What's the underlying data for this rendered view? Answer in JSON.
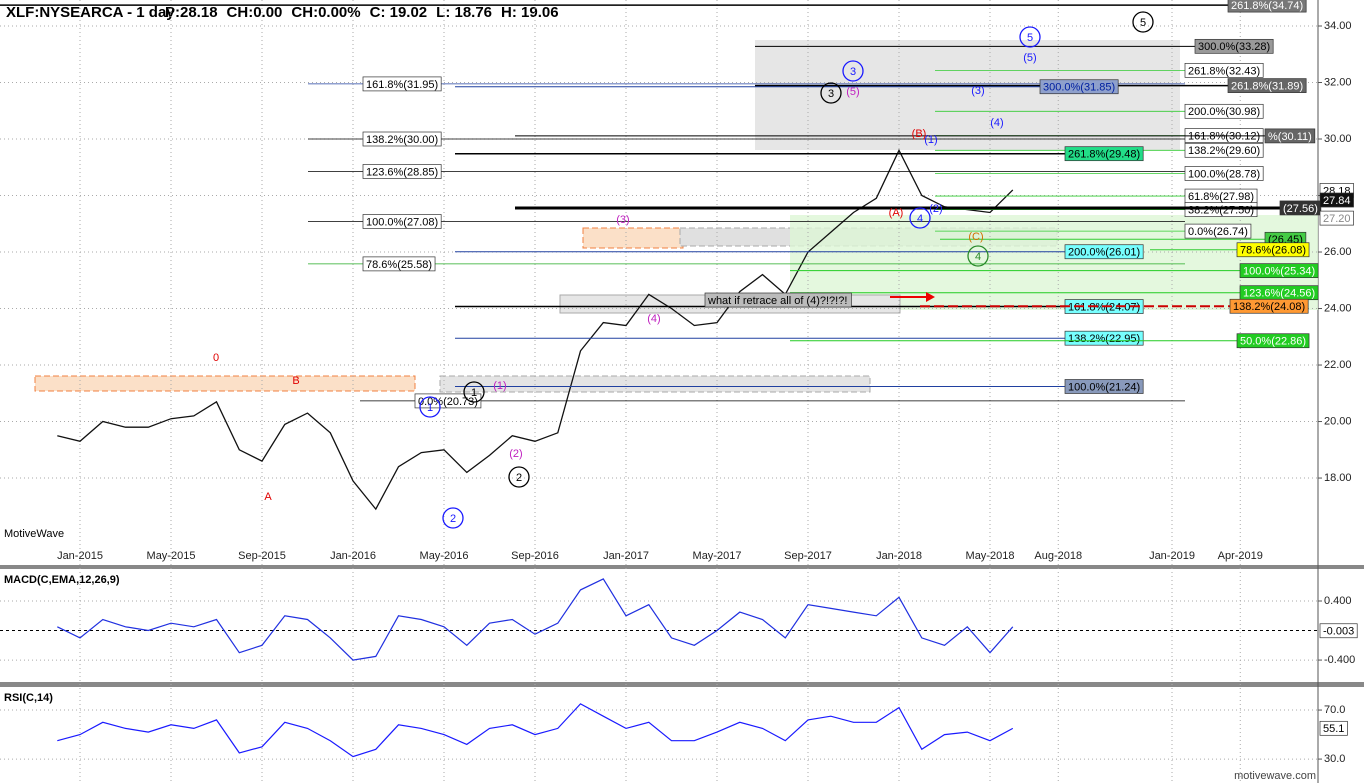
{
  "header": {
    "symbol": "XLF:NYSEARCA - 1 day",
    "fields": [
      "P:28.18",
      "CH:0.00",
      "CH:0.00%",
      "C: 19.02",
      "L: 18.76",
      "H: 19.06"
    ]
  },
  "watermark": "MotiveWave",
  "footer": "motivewave.com",
  "chart_data": [
    {
      "type": "line",
      "color": "#111111",
      "grid": true,
      "categories": [
        null,
        "Jan-2015",
        null,
        null,
        null,
        "May-2015",
        null,
        null,
        null,
        "Sep-2015",
        null,
        null,
        null,
        "Jan-2016",
        null,
        null,
        null,
        "May-2016",
        null,
        null,
        null,
        "Sep-2016",
        null,
        null,
        null,
        "Jan-2017",
        null,
        null,
        null,
        "May-2017",
        null,
        null,
        null,
        "Sep-2017",
        null,
        null,
        null,
        "Jan-2018",
        null,
        null,
        null,
        "May-2018",
        null,
        null,
        "Aug-2018",
        null,
        null,
        null,
        null,
        "Jan-2019",
        null,
        null,
        "Apr-2019"
      ],
      "values": [
        19.5,
        19.3,
        20.0,
        19.8,
        19.8,
        20.1,
        20.2,
        20.7,
        19.0,
        18.6,
        19.9,
        20.3,
        19.6,
        17.9,
        16.9,
        18.4,
        18.9,
        19.0,
        18.2,
        18.8,
        19.5,
        19.3,
        19.6,
        22.5,
        23.5,
        23.4,
        24.5,
        24.0,
        23.4,
        23.5,
        24.6,
        25.2,
        24.5,
        26.0,
        26.7,
        27.4,
        27.9,
        29.6,
        28.0,
        27.6,
        27.5,
        27.4,
        28.2,
        null,
        null,
        null,
        null,
        null,
        null,
        null,
        null,
        null,
        null
      ],
      "ylim": [
        15.63,
        34.92
      ],
      "yticks": [
        {
          "value": 18,
          "label": "18.00"
        },
        {
          "value": 20,
          "label": "20.00"
        },
        {
          "value": 22,
          "label": "22.00"
        },
        {
          "value": 24,
          "label": "24.00"
        },
        {
          "value": 26,
          "label": "26.00"
        },
        {
          "value": 28,
          "label": "28.00"
        },
        {
          "value": 30,
          "label": "30.00"
        },
        {
          "value": 32,
          "label": "32.00"
        },
        {
          "value": 34,
          "label": "34.00"
        }
      ],
      "price_labels": [
        {
          "value": 28.18,
          "label": "28.18"
        },
        {
          "value": 27.84,
          "label": "27.84"
        },
        {
          "value": 27.2,
          "label": "27.20"
        }
      ],
      "levels_left": [
        {
          "value": 31.95,
          "label": "161.8%(31.95)"
        },
        {
          "value": 30.0,
          "label": "138.2%(30.00)"
        },
        {
          "value": 28.85,
          "label": "123.6%(28.85)"
        },
        {
          "value": 27.08,
          "label": "100.0%(27.08)"
        },
        {
          "value": 25.58,
          "label": "78.6%(25.58)"
        },
        {
          "value": 20.73,
          "label": "0.0%(20.73)"
        }
      ],
      "levels_right": [
        {
          "value": 32.43,
          "label": "261.8%(32.43)"
        },
        {
          "value": 30.98,
          "label": "200.0%(30.98)"
        },
        {
          "value": 30.12,
          "label": "161.8%(30.12)"
        },
        {
          "value": 29.6,
          "label": "138.2%(29.60)"
        },
        {
          "value": 28.78,
          "label": "100.0%(28.78)"
        },
        {
          "value": 27.98,
          "label": "61.8%(27.98)"
        },
        {
          "value": 27.5,
          "label": "38.2%(27.50)"
        },
        {
          "value": 26.74,
          "label": "0.0%(26.74)"
        }
      ],
      "levels_boxed": [
        {
          "value": 34.74,
          "label": "261.8%(34.74)"
        },
        {
          "value": 33.28,
          "label": "300.0%(33.28)"
        },
        {
          "value": 31.89,
          "label": "261.8%(31.89)"
        },
        {
          "value": 31.85,
          "label": "300.0%(31.85)"
        },
        {
          "value": 29.48,
          "label": "261.8%(29.48)"
        },
        {
          "value": 30.11,
          "label": "%(30.11)"
        },
        {
          "value": 27.56,
          "label": "(27.56)"
        },
        {
          "value": 26.45,
          "label": "(26.45)"
        },
        {
          "value": 26.01,
          "label": "200.0%(26.01)"
        },
        {
          "value": 26.08,
          "label": "78.6%(26.08)"
        },
        {
          "value": 25.34,
          "label": "100.0%(25.34)"
        },
        {
          "value": 24.56,
          "label": "123.6%(24.56)"
        },
        {
          "value": 24.07,
          "label": "161.8%(24.07)"
        },
        {
          "value": 24.08,
          "label": "138.2%(24.08)"
        },
        {
          "value": 22.95,
          "label": "138.2%(22.95)"
        },
        {
          "value": 22.86,
          "label": "50.0%(22.86)"
        },
        {
          "value": 21.24,
          "label": "100.0%(21.24)"
        }
      ],
      "wave_labels": [
        {
          "text": "0",
          "color": "#e00000"
        },
        {
          "text": "B",
          "color": "#e00000"
        },
        {
          "text": "A",
          "color": "#e00000"
        },
        {
          "text": "1",
          "color": "#1a1aff",
          "circled": true
        },
        {
          "text": "2",
          "color": "#1a1aff",
          "circled": true
        },
        {
          "text": "(1)",
          "color": "#c020c0"
        },
        {
          "text": "(2)",
          "color": "#c020c0"
        },
        {
          "text": "1",
          "color": "#000000",
          "circled": true
        },
        {
          "text": "2",
          "color": "#000000",
          "circled": true
        },
        {
          "text": "(3)",
          "color": "#c020c0"
        },
        {
          "text": "(4)",
          "color": "#c020c0"
        },
        {
          "text": "3",
          "color": "#000000",
          "circled": true
        },
        {
          "text": "3",
          "color": "#1a1aff",
          "circled": true
        },
        {
          "text": "(5)",
          "color": "#c020c0"
        },
        {
          "text": "5",
          "color": "#1a1aff",
          "circled": true
        },
        {
          "text": "5",
          "color": "#000000",
          "circled": true
        },
        {
          "text": "(5)",
          "color": "#1a1aff"
        },
        {
          "text": "(3)",
          "color": "#1a1aff"
        },
        {
          "text": "(4)",
          "color": "#1a1aff"
        },
        {
          "text": "(B)",
          "color": "#e00000"
        },
        {
          "text": "(1)",
          "color": "#1a1aff"
        },
        {
          "text": "(A)",
          "color": "#e00000"
        },
        {
          "text": "(2)",
          "color": "#1a1aff"
        },
        {
          "text": "4",
          "color": "#1a1aff",
          "circled": true
        },
        {
          "text": "(C)",
          "color": "#d07000"
        },
        {
          "text": "4",
          "color": "#2a8a2a",
          "circled": true
        }
      ],
      "annotation": "what if retrace all of (4)?!?!?!"
    },
    {
      "type": "line",
      "title": "MACD(C,EMA,12,26,9)",
      "color": "#2030e0",
      "zero_line": true,
      "values": [
        0.05,
        -0.1,
        0.15,
        0.05,
        0.0,
        0.1,
        0.05,
        0.15,
        -0.3,
        -0.2,
        0.2,
        0.15,
        -0.1,
        -0.4,
        -0.35,
        0.2,
        0.15,
        0.05,
        -0.2,
        0.1,
        0.15,
        -0.05,
        0.1,
        0.55,
        0.7,
        0.2,
        0.35,
        -0.1,
        -0.2,
        0.0,
        0.25,
        0.15,
        -0.1,
        0.35,
        0.3,
        0.25,
        0.2,
        0.45,
        -0.1,
        -0.2,
        0.05,
        -0.3,
        0.05
      ],
      "ylim": [
        -0.67,
        0.82
      ],
      "yticks": [
        {
          "value": -0.4,
          "label": "-0.400"
        },
        {
          "value": 0.4,
          "label": "0.400"
        }
      ],
      "last": {
        "value": -0.003,
        "label": "-0.003"
      }
    },
    {
      "type": "line",
      "title": "RSI(C,14)",
      "color": "#1a1aff",
      "values": [
        45,
        50,
        60,
        55,
        52,
        58,
        55,
        62,
        35,
        40,
        60,
        55,
        45,
        32,
        38,
        58,
        55,
        50,
        42,
        55,
        58,
        50,
        55,
        75,
        65,
        55,
        60,
        45,
        45,
        52,
        60,
        55,
        45,
        62,
        65,
        60,
        60,
        72,
        38,
        50,
        52,
        45,
        55
      ],
      "ylim": [
        17,
        88
      ],
      "yticks": [
        {
          "value": 30,
          "label": "30.0"
        },
        {
          "value": 70,
          "label": "70.0"
        }
      ],
      "last": {
        "value": 55.1,
        "label": "55.1"
      }
    }
  ]
}
